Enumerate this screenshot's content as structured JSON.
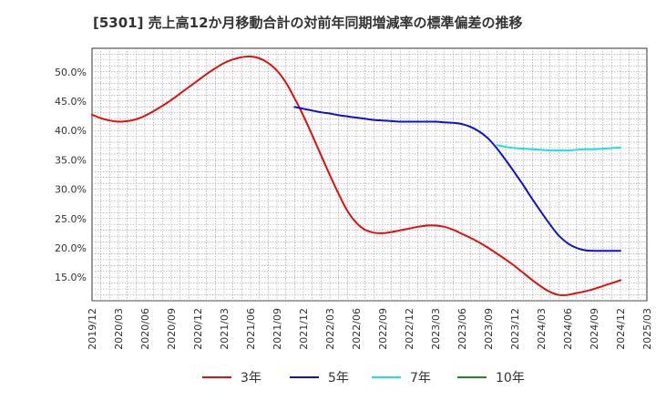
{
  "chart_data": {
    "type": "line",
    "title": "[5301]  売上高12か月移動合計の対前年同期増減率の標準偏差の推移",
    "xlabel": "",
    "ylabel": "",
    "ylim": [
      11.0,
      54.0
    ],
    "yticks": [
      15.0,
      20.0,
      25.0,
      30.0,
      35.0,
      40.0,
      45.0,
      50.0
    ],
    "ytick_labels": [
      "15.0%",
      "20.0%",
      "25.0%",
      "30.0%",
      "35.0%",
      "40.0%",
      "45.0%",
      "50.0%"
    ],
    "x_ticks": [
      "2019/12",
      "2020/03",
      "2020/06",
      "2020/09",
      "2020/12",
      "2021/03",
      "2021/06",
      "2021/09",
      "2021/12",
      "2022/03",
      "2022/06",
      "2022/09",
      "2022/12",
      "2023/03",
      "2023/06",
      "2023/09",
      "2023/12",
      "2024/03",
      "2024/06",
      "2024/09",
      "2024/12",
      "2025/03"
    ],
    "grid": true,
    "legend_position": "bottom",
    "series": [
      {
        "name": "3年",
        "color": "#dd1111",
        "points": [
          [
            "2019/12",
            42.7
          ],
          [
            "2020/01",
            42.1
          ],
          [
            "2020/02",
            41.7
          ],
          [
            "2020/03",
            41.5
          ],
          [
            "2020/04",
            41.6
          ],
          [
            "2020/05",
            41.9
          ],
          [
            "2020/06",
            42.5
          ],
          [
            "2020/07",
            43.3
          ],
          [
            "2020/08",
            44.2
          ],
          [
            "2020/09",
            45.2
          ],
          [
            "2020/10",
            46.3
          ],
          [
            "2020/11",
            47.4
          ],
          [
            "2020/12",
            48.5
          ],
          [
            "2021/01",
            49.6
          ],
          [
            "2021/02",
            50.6
          ],
          [
            "2021/03",
            51.5
          ],
          [
            "2021/04",
            52.1
          ],
          [
            "2021/05",
            52.5
          ],
          [
            "2021/06",
            52.6
          ],
          [
            "2021/07",
            52.3
          ],
          [
            "2021/08",
            51.5
          ],
          [
            "2021/09",
            50.2
          ],
          [
            "2021/10",
            48.2
          ],
          [
            "2021/11",
            45.5
          ],
          [
            "2021/12",
            42.5
          ],
          [
            "2022/01",
            39.2
          ],
          [
            "2022/02",
            35.8
          ],
          [
            "2022/03",
            32.4
          ],
          [
            "2022/04",
            29.2
          ],
          [
            "2022/05",
            26.3
          ],
          [
            "2022/06",
            24.3
          ],
          [
            "2022/07",
            23.1
          ],
          [
            "2022/08",
            22.6
          ],
          [
            "2022/09",
            22.5
          ],
          [
            "2022/10",
            22.7
          ],
          [
            "2022/11",
            23.0
          ],
          [
            "2022/12",
            23.3
          ],
          [
            "2023/01",
            23.6
          ],
          [
            "2023/02",
            23.8
          ],
          [
            "2023/03",
            23.8
          ],
          [
            "2023/04",
            23.6
          ],
          [
            "2023/05",
            23.1
          ],
          [
            "2023/06",
            22.4
          ],
          [
            "2023/07",
            21.7
          ],
          [
            "2023/08",
            20.9
          ],
          [
            "2023/09",
            20.0
          ],
          [
            "2023/10",
            19.0
          ],
          [
            "2023/11",
            18.0
          ],
          [
            "2023/12",
            16.9
          ],
          [
            "2024/01",
            15.7
          ],
          [
            "2024/02",
            14.5
          ],
          [
            "2024/03",
            13.4
          ],
          [
            "2024/04",
            12.5
          ],
          [
            "2024/05",
            12.0
          ],
          [
            "2024/06",
            12.0
          ],
          [
            "2024/07",
            12.3
          ],
          [
            "2024/08",
            12.6
          ],
          [
            "2024/09",
            13.0
          ],
          [
            "2024/10",
            13.5
          ],
          [
            "2024/11",
            14.0
          ],
          [
            "2024/12",
            14.5
          ]
        ]
      },
      {
        "name": "5年",
        "color": "#1111cc",
        "points": [
          [
            "2021/11",
            44.0
          ],
          [
            "2021/12",
            43.7
          ],
          [
            "2022/01",
            43.4
          ],
          [
            "2022/02",
            43.1
          ],
          [
            "2022/03",
            42.9
          ],
          [
            "2022/04",
            42.6
          ],
          [
            "2022/05",
            42.4
          ],
          [
            "2022/06",
            42.2
          ],
          [
            "2022/07",
            42.0
          ],
          [
            "2022/08",
            41.8
          ],
          [
            "2022/09",
            41.7
          ],
          [
            "2022/10",
            41.6
          ],
          [
            "2022/11",
            41.5
          ],
          [
            "2022/12",
            41.5
          ],
          [
            "2023/01",
            41.5
          ],
          [
            "2023/02",
            41.5
          ],
          [
            "2023/03",
            41.5
          ],
          [
            "2023/04",
            41.4
          ],
          [
            "2023/05",
            41.3
          ],
          [
            "2023/06",
            41.1
          ],
          [
            "2023/07",
            40.6
          ],
          [
            "2023/08",
            39.8
          ],
          [
            "2023/09",
            38.6
          ],
          [
            "2023/10",
            36.9
          ],
          [
            "2023/11",
            34.9
          ],
          [
            "2023/12",
            32.8
          ],
          [
            "2024/01",
            30.6
          ],
          [
            "2024/02",
            28.3
          ],
          [
            "2024/03",
            26.1
          ],
          [
            "2024/04",
            24.0
          ],
          [
            "2024/05",
            22.1
          ],
          [
            "2024/06",
            20.8
          ],
          [
            "2024/07",
            20.0
          ],
          [
            "2024/08",
            19.6
          ],
          [
            "2024/09",
            19.5
          ],
          [
            "2024/10",
            19.5
          ],
          [
            "2024/11",
            19.5
          ],
          [
            "2024/12",
            19.5
          ]
        ]
      },
      {
        "name": "7年",
        "color": "#22dddd",
        "points": [
          [
            "2023/10",
            37.5
          ],
          [
            "2023/11",
            37.2
          ],
          [
            "2023/12",
            37.0
          ],
          [
            "2024/01",
            36.9
          ],
          [
            "2024/02",
            36.8
          ],
          [
            "2024/03",
            36.7
          ],
          [
            "2024/04",
            36.6
          ],
          [
            "2024/05",
            36.6
          ],
          [
            "2024/06",
            36.6
          ],
          [
            "2024/07",
            36.7
          ],
          [
            "2024/08",
            36.8
          ],
          [
            "2024/09",
            36.8
          ],
          [
            "2024/10",
            36.9
          ],
          [
            "2024/11",
            37.0
          ],
          [
            "2024/12",
            37.1
          ]
        ]
      },
      {
        "name": "10年",
        "color": "#228822",
        "points": []
      }
    ]
  }
}
